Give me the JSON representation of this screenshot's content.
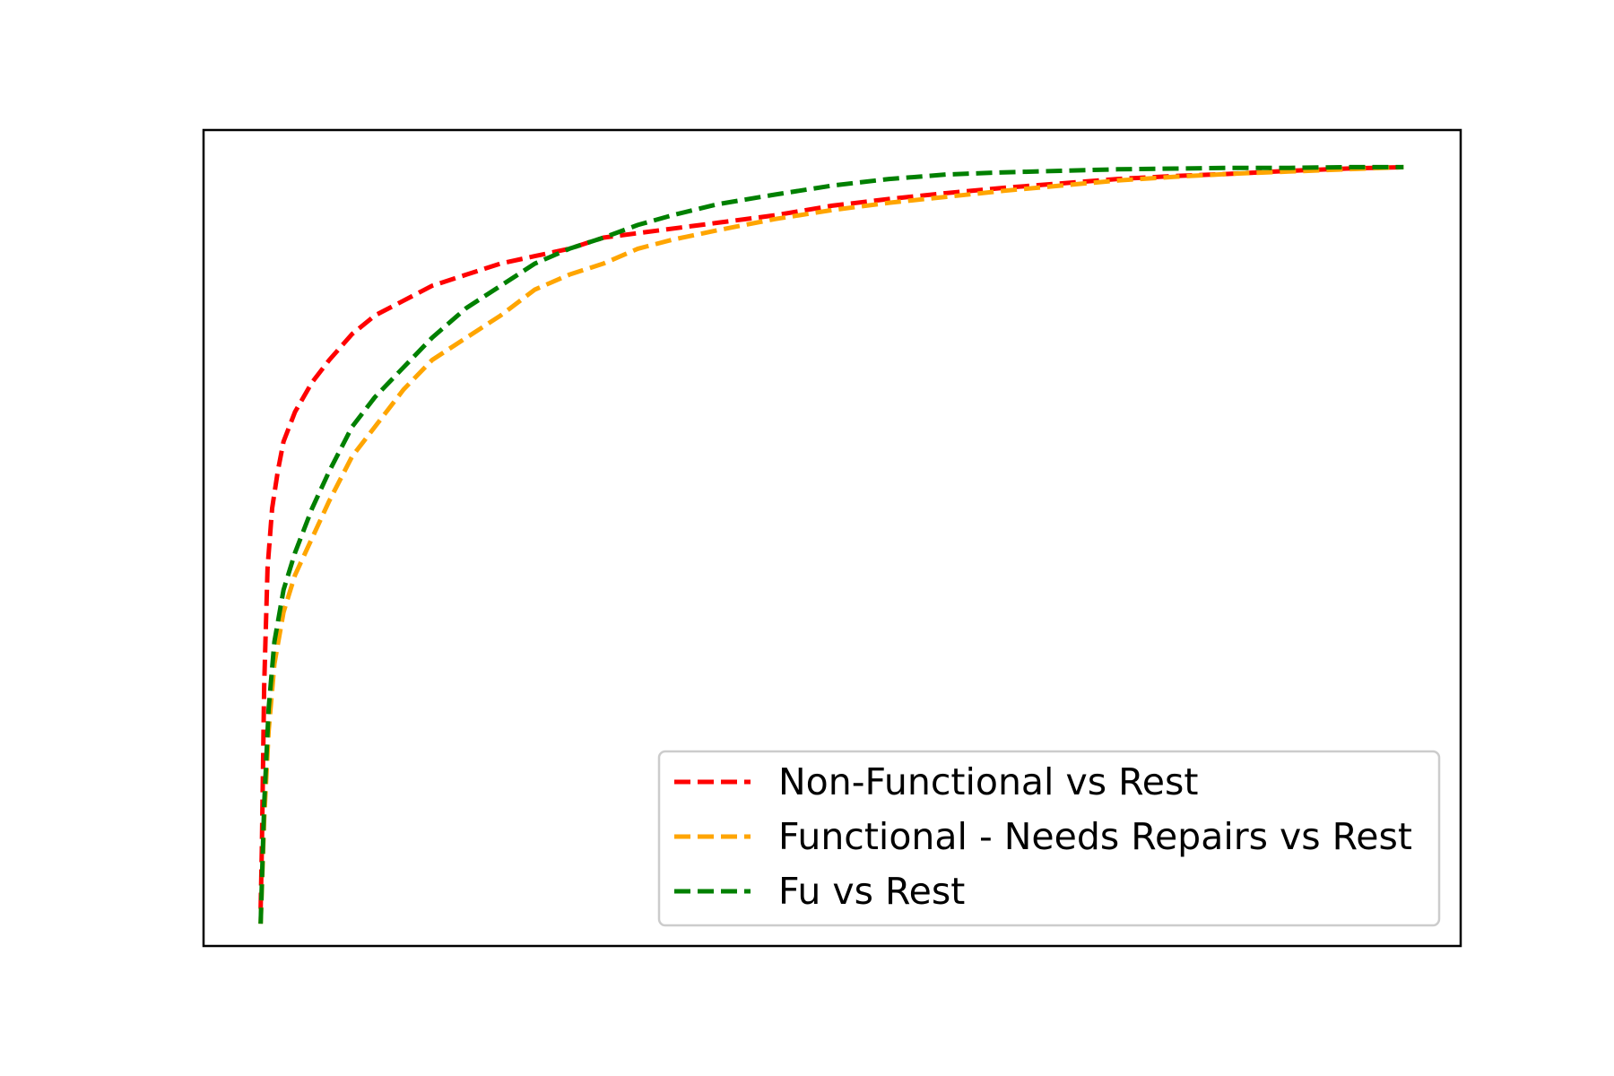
{
  "chart_data": {
    "type": "line",
    "title": "",
    "xlabel": "",
    "ylabel": "",
    "xlim": [
      -0.05,
      1.05
    ],
    "ylim": [
      -0.05,
      1.05
    ],
    "grid": false,
    "legend_position": "lower right",
    "series": [
      {
        "name": "Non-Functional vs Rest",
        "color": "#ff0000",
        "x": [
          0.0,
          0.001,
          0.003,
          0.006,
          0.01,
          0.015,
          0.02,
          0.03,
          0.045,
          0.06,
          0.08,
          0.1,
          0.125,
          0.15,
          0.18,
          0.21,
          0.24,
          0.27,
          0.3,
          0.35,
          0.4,
          0.45,
          0.5,
          0.55,
          0.6,
          0.65,
          0.7,
          0.75,
          0.8,
          0.85,
          0.9,
          0.95,
          1.0
        ],
        "y": [
          0.0,
          0.08,
          0.3,
          0.46,
          0.54,
          0.59,
          0.63,
          0.67,
          0.71,
          0.74,
          0.775,
          0.8,
          0.82,
          0.84,
          0.855,
          0.87,
          0.88,
          0.89,
          0.905,
          0.915,
          0.925,
          0.935,
          0.948,
          0.957,
          0.965,
          0.972,
          0.978,
          0.984,
          0.988,
          0.991,
          0.995,
          0.998,
          1.0
        ]
      },
      {
        "name": "Functional - Needs Repairs vs Rest",
        "color": "#ffa500",
        "x": [
          0.0,
          0.003,
          0.007,
          0.012,
          0.02,
          0.03,
          0.045,
          0.06,
          0.08,
          0.1,
          0.125,
          0.15,
          0.18,
          0.21,
          0.24,
          0.27,
          0.3,
          0.33,
          0.36,
          0.4,
          0.45,
          0.5,
          0.55,
          0.6,
          0.65,
          0.7,
          0.75,
          0.8,
          0.85,
          0.9,
          0.95,
          1.0
        ],
        "y": [
          -0.02,
          0.12,
          0.24,
          0.33,
          0.4,
          0.45,
          0.5,
          0.55,
          0.61,
          0.65,
          0.7,
          0.74,
          0.77,
          0.8,
          0.835,
          0.855,
          0.87,
          0.89,
          0.902,
          0.915,
          0.93,
          0.942,
          0.952,
          0.96,
          0.968,
          0.975,
          0.982,
          0.987,
          0.991,
          0.994,
          0.997,
          1.0
        ]
      },
      {
        "name": "Fu vs Rest",
        "color": "#008000",
        "x": [
          0.0,
          0.003,
          0.007,
          0.012,
          0.02,
          0.03,
          0.045,
          0.06,
          0.08,
          0.1,
          0.125,
          0.15,
          0.18,
          0.21,
          0.24,
          0.27,
          0.3,
          0.33,
          0.36,
          0.4,
          0.45,
          0.5,
          0.55,
          0.6,
          0.65,
          0.7,
          0.75,
          0.8,
          0.85,
          0.9,
          0.95,
          1.0
        ],
        "y": [
          -0.02,
          0.14,
          0.27,
          0.36,
          0.43,
          0.48,
          0.54,
          0.59,
          0.65,
          0.69,
          0.73,
          0.77,
          0.81,
          0.84,
          0.87,
          0.89,
          0.905,
          0.922,
          0.935,
          0.95,
          0.963,
          0.975,
          0.984,
          0.99,
          0.993,
          0.995,
          0.997,
          0.998,
          0.999,
          0.999,
          1.0,
          1.0
        ]
      }
    ]
  }
}
